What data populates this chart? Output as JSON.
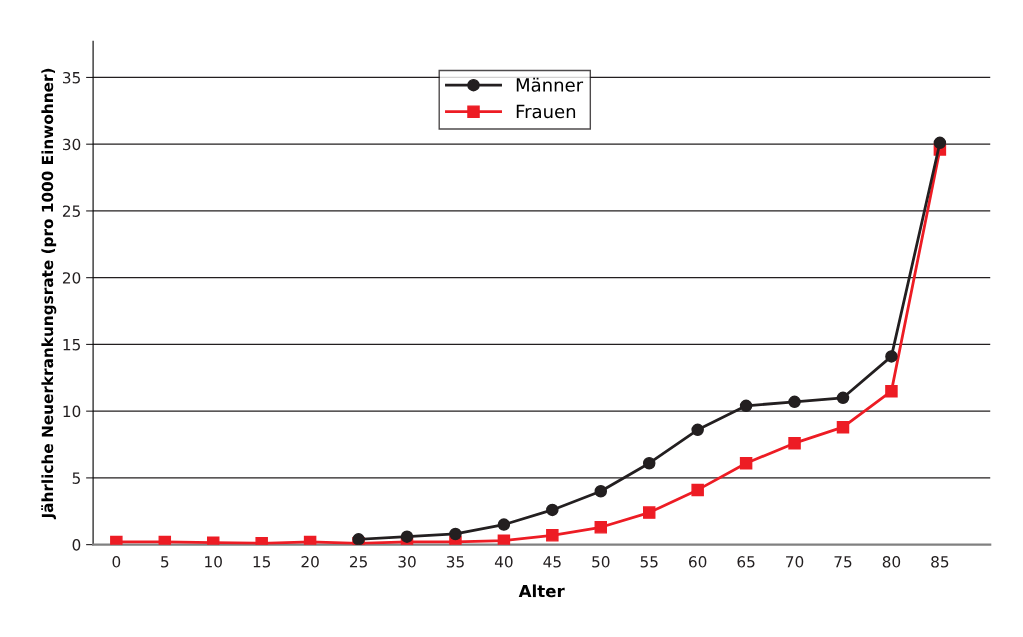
{
  "chart_data": {
    "type": "line",
    "xlabel": "Alter",
    "ylabel": "Jährliche Neuerkrankungsrate (pro 1000 Einwohner)",
    "x": [
      0,
      5,
      10,
      15,
      20,
      25,
      30,
      35,
      40,
      45,
      50,
      55,
      60,
      65,
      70,
      75,
      80,
      85
    ],
    "series": [
      {
        "name": "Männer",
        "color": "#231f20",
        "marker": "circle",
        "values": [
          null,
          null,
          null,
          null,
          null,
          0.4,
          0.6,
          0.8,
          1.5,
          2.6,
          4.0,
          6.1,
          8.6,
          10.4,
          10.7,
          11.0,
          14.1,
          30.1
        ]
      },
      {
        "name": "Frauen",
        "color": "#ed1c24",
        "marker": "square",
        "values": [
          0.2,
          0.2,
          0.15,
          0.1,
          0.2,
          0.1,
          0.2,
          0.2,
          0.3,
          0.7,
          1.3,
          2.4,
          4.1,
          6.1,
          7.6,
          8.8,
          11.5,
          29.6
        ]
      }
    ],
    "xlim": [
      -2.4,
      90.2
    ],
    "xticks": [
      0,
      5,
      10,
      15,
      20,
      25,
      30,
      35,
      40,
      45,
      50,
      55,
      60,
      65,
      70,
      75,
      80,
      85
    ],
    "ylim": [
      0,
      37.7
    ],
    "yticks": [
      0,
      5,
      10,
      15,
      20,
      25,
      30,
      35
    ],
    "grid": "y",
    "legend": "top center",
    "line_style": "solid"
  }
}
